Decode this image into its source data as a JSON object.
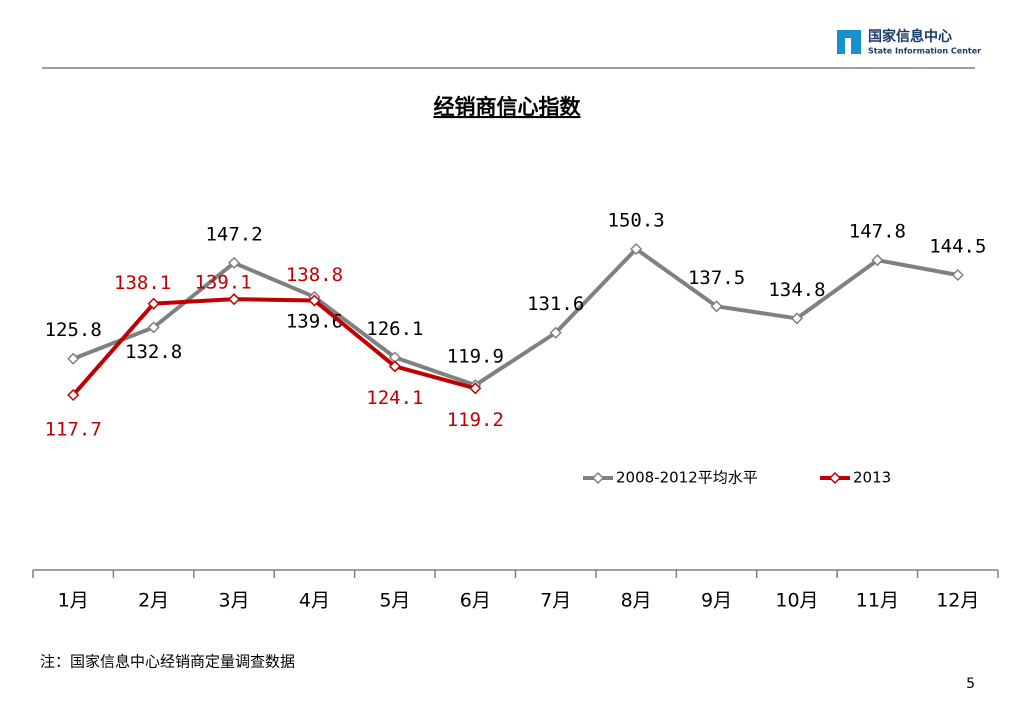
{
  "header": {
    "org_cn": "国家信息中心",
    "org_en": "State Information Center"
  },
  "chart_data": {
    "type": "line",
    "title": "经销商信心指数",
    "categories": [
      "1月",
      "2月",
      "3月",
      "4月",
      "5月",
      "6月",
      "7月",
      "8月",
      "9月",
      "10月",
      "11月",
      "12月"
    ],
    "series": [
      {
        "name": "2008-2012平均水平",
        "color": "#808080",
        "values": [
          125.8,
          132.8,
          147.2,
          139.6,
          126.1,
          119.9,
          131.6,
          150.3,
          137.5,
          134.8,
          147.8,
          144.5
        ]
      },
      {
        "name": "2013",
        "color": "#c00000",
        "values": [
          117.7,
          138.1,
          139.1,
          138.8,
          124.1,
          119.2,
          null,
          null,
          null,
          null,
          null,
          null
        ]
      }
    ]
  },
  "footnote": "注：国家信息中心经销商定量调查数据",
  "page_number": "5"
}
